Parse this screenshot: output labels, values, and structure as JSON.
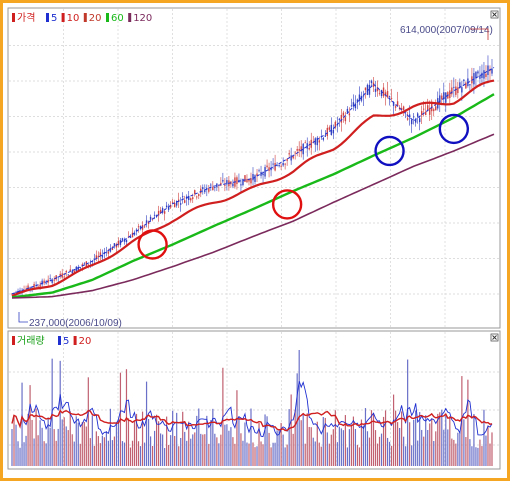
{
  "legend": {
    "price": {
      "label": "가격",
      "items": [
        {
          "label": "5",
          "color": "#1f2fd0"
        },
        {
          "label": "10",
          "color": "#d01f1f"
        },
        {
          "label": "20",
          "color": "#c0392b"
        },
        {
          "label": "60",
          "color": "#19b919"
        },
        {
          "label": "120",
          "color": "#7b2a5c"
        }
      ]
    },
    "volume": {
      "label": "거래량",
      "items": [
        {
          "label": "5",
          "color": "#1f2fd0"
        },
        {
          "label": "20",
          "color": "#d01f1f"
        }
      ]
    }
  },
  "colors": {
    "frame": "#f5a623",
    "up_bar": "#d04040",
    "down_bar": "#3040c0",
    "ma5": "#1f2fd0",
    "ma20": "#d01f1f",
    "ma60": "#19b919",
    "ma120": "#7b2a5c",
    "circle_red": "#e01010",
    "circle_blue": "#1010c0"
  },
  "close_icons": [
    "close-icon",
    "close-icon"
  ],
  "chart_data": [
    {
      "type": "line",
      "name_label": "가격",
      "annotations": {
        "high": "614,000(2007/09/14)",
        "low": "237,000(2006/10/09)"
      },
      "ylim": [
        205000,
        660000
      ],
      "x_count": 240,
      "series": [
        {
          "name": "5",
          "x": [
            0,
            20,
            40,
            60,
            80,
            100,
            110,
            120,
            140,
            160,
            180,
            200,
            220,
            240
          ],
          "values": [
            241000,
            262000,
            290000,
            330000,
            376000,
            402000,
            408000,
            414000,
            448000,
            488000,
            555000,
            500000,
            545000,
            580000
          ]
        },
        {
          "name": "20",
          "x": [
            0,
            20,
            40,
            60,
            80,
            100,
            120,
            140,
            160,
            180,
            200,
            220,
            240
          ],
          "values": [
            238000,
            255000,
            283000,
            318000,
            352000,
            378000,
            398000,
            425000,
            460000,
            505000,
            520000,
            530000,
            560000
          ]
        },
        {
          "name": "60",
          "x": [
            0,
            20,
            40,
            60,
            80,
            100,
            120,
            140,
            160,
            180,
            200,
            220,
            240
          ],
          "values": [
            236000,
            243000,
            262000,
            290000,
            315000,
            342000,
            368000,
            395000,
            420000,
            448000,
            475000,
            505000,
            540000
          ]
        },
        {
          "name": "120",
          "x": [
            0,
            20,
            40,
            60,
            80,
            100,
            120,
            140,
            160,
            180,
            200,
            220,
            240
          ],
          "values": [
            235000,
            237000,
            246000,
            262000,
            282000,
            303000,
            327000,
            350000,
            378000,
            405000,
            432000,
            455000,
            480000
          ]
        }
      ],
      "circles": [
        {
          "x": 70,
          "y": 315000,
          "color": "red"
        },
        {
          "x": 137,
          "y": 375000,
          "color": "red"
        },
        {
          "x": 188,
          "y": 455000,
          "color": "blue"
        },
        {
          "x": 220,
          "y": 488000,
          "color": "blue"
        }
      ]
    },
    {
      "type": "bar",
      "name_label": "거래량",
      "series": [
        {
          "name": "5"
        },
        {
          "name": "20"
        }
      ]
    }
  ]
}
